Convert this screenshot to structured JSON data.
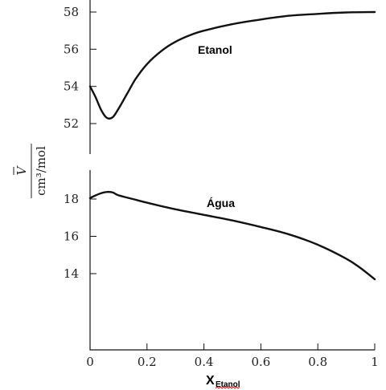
{
  "chart_data": [
    {
      "type": "line",
      "series": [
        {
          "name": "Etanol",
          "x": [
            0,
            0.02,
            0.04,
            0.06,
            0.08,
            0.1,
            0.13,
            0.16,
            0.2,
            0.25,
            0.3,
            0.35,
            0.4,
            0.5,
            0.6,
            0.7,
            0.8,
            0.9,
            1.0
          ],
          "y": [
            54.0,
            53.4,
            52.7,
            52.3,
            52.35,
            52.8,
            53.6,
            54.4,
            55.2,
            55.9,
            56.4,
            56.75,
            57.0,
            57.35,
            57.6,
            57.8,
            57.9,
            57.98,
            58.0
          ]
        }
      ],
      "yticks": [
        "52",
        "54",
        "56",
        "58"
      ],
      "ytick_values": [
        52,
        54,
        56,
        58
      ],
      "ylim": [
        50.8,
        58.6
      ]
    },
    {
      "type": "line",
      "series": [
        {
          "name": "Água",
          "x": [
            0,
            0.02,
            0.04,
            0.06,
            0.08,
            0.1,
            0.15,
            0.2,
            0.3,
            0.4,
            0.5,
            0.6,
            0.7,
            0.8,
            0.9,
            0.95,
            1.0
          ],
          "y": [
            18.05,
            18.2,
            18.32,
            18.38,
            18.35,
            18.2,
            18.0,
            17.8,
            17.45,
            17.15,
            16.85,
            16.5,
            16.1,
            15.55,
            14.8,
            14.3,
            13.7
          ]
        }
      ],
      "yticks": [
        "14",
        "16",
        "18"
      ],
      "ytick_values": [
        14,
        16,
        18
      ],
      "ylim": [
        10.0,
        19.5
      ]
    }
  ],
  "shared_axes": {
    "xticks": [
      "0",
      "0.2",
      "0.4",
      "0.6",
      "0.8",
      "1"
    ],
    "xtick_values": [
      0,
      0.2,
      0.4,
      0.6,
      0.8,
      1
    ],
    "xlim": [
      0,
      1
    ],
    "xlabel_main": "X",
    "xlabel_sub": "Etanol",
    "ylabel_top": "V",
    "ylabel_bottom": "cm³/mol"
  }
}
